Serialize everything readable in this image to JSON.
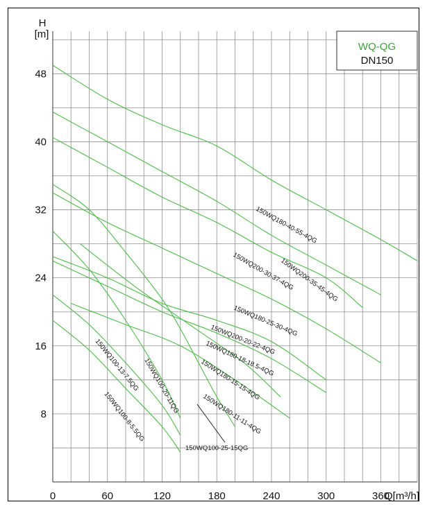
{
  "chart_data": {
    "type": "line",
    "title_lines": [
      "WQ-QG",
      "DN150"
    ],
    "title_color": "#3aa23a",
    "curve_color": "#4cbb47",
    "xlabel": "Q[m³/h]",
    "ylabel_top": "H",
    "ylabel_unit": "[m]",
    "xlim": [
      0,
      400
    ],
    "ylim": [
      0,
      53
    ],
    "x_ticks": [
      0,
      60,
      120,
      180,
      240,
      300,
      360
    ],
    "y_ticks": [
      8,
      16,
      24,
      32,
      40,
      48
    ],
    "grid": true,
    "legend_position": "top-right",
    "series": [
      {
        "name": "150WQ180-40-55-4QG",
        "points": [
          [
            0,
            49
          ],
          [
            60,
            45
          ],
          [
            120,
            42
          ],
          [
            180,
            39.5
          ],
          [
            240,
            35.5
          ],
          [
            300,
            32
          ],
          [
            360,
            28.5
          ],
          [
            400,
            26
          ]
        ]
      },
      {
        "name": "150WQ200-35-45-4QG",
        "points": [
          [
            0,
            43.5
          ],
          [
            60,
            40
          ],
          [
            120,
            36.5
          ],
          [
            180,
            33
          ],
          [
            240,
            29
          ],
          [
            300,
            25.5
          ],
          [
            360,
            22
          ]
        ]
      },
      {
        "name": "150WQ200-30-37-4QG",
        "points": [
          [
            0,
            40.5
          ],
          [
            60,
            37
          ],
          [
            120,
            33.5
          ],
          [
            180,
            30.5
          ],
          [
            240,
            27
          ],
          [
            300,
            24
          ],
          [
            340,
            20.5
          ]
        ]
      },
      {
        "name": "150WQ180-25-30-4QG",
        "points": [
          [
            0,
            34
          ],
          [
            60,
            30.5
          ],
          [
            120,
            27.5
          ],
          [
            180,
            24.5
          ],
          [
            240,
            21.5
          ],
          [
            300,
            18
          ],
          [
            360,
            14
          ]
        ]
      },
      {
        "name": "150WQ200-20-22-4QG",
        "points": [
          [
            0,
            26.5
          ],
          [
            60,
            24
          ],
          [
            120,
            21
          ],
          [
            180,
            19
          ],
          [
            240,
            16.5
          ],
          [
            300,
            12
          ]
        ]
      },
      {
        "name": "150WQ180-18-18.5-4QG",
        "points": [
          [
            0,
            26
          ],
          [
            60,
            23
          ],
          [
            120,
            20
          ],
          [
            180,
            17.5
          ],
          [
            240,
            14.5
          ],
          [
            300,
            10.5
          ]
        ]
      },
      {
        "name": "150WQ180-15-15-4QG",
        "points": [
          [
            30,
            28
          ],
          [
            90,
            23
          ],
          [
            150,
            18.5
          ],
          [
            210,
            14
          ],
          [
            250,
            10
          ]
        ]
      },
      {
        "name": "150WQ180-11-11-4QG",
        "points": [
          [
            20,
            21
          ],
          [
            80,
            18.5
          ],
          [
            140,
            16
          ],
          [
            200,
            12
          ],
          [
            260,
            7.5
          ]
        ]
      },
      {
        "name": "150WQ100-25-15QG",
        "points": [
          [
            0,
            35
          ],
          [
            40,
            32
          ],
          [
            80,
            27
          ],
          [
            120,
            21.5
          ],
          [
            140,
            18
          ],
          [
            160,
            14
          ],
          [
            180,
            10
          ],
          [
            200,
            6.5
          ]
        ]
      },
      {
        "name": "150WQ100-20-11QG",
        "points": [
          [
            0,
            29.5
          ],
          [
            40,
            25
          ],
          [
            80,
            19
          ],
          [
            120,
            12
          ],
          [
            140,
            7.5
          ]
        ]
      },
      {
        "name": "150WQ100-13-7.5QG",
        "points": [
          [
            0,
            22
          ],
          [
            40,
            18.5
          ],
          [
            80,
            14
          ],
          [
            120,
            9
          ],
          [
            140,
            5.5
          ]
        ]
      },
      {
        "name": "150WQ100-8-5.5QG",
        "points": [
          [
            0,
            19
          ],
          [
            40,
            15.5
          ],
          [
            80,
            11
          ],
          [
            120,
            6.5
          ],
          [
            140,
            3.5
          ]
        ]
      }
    ]
  }
}
